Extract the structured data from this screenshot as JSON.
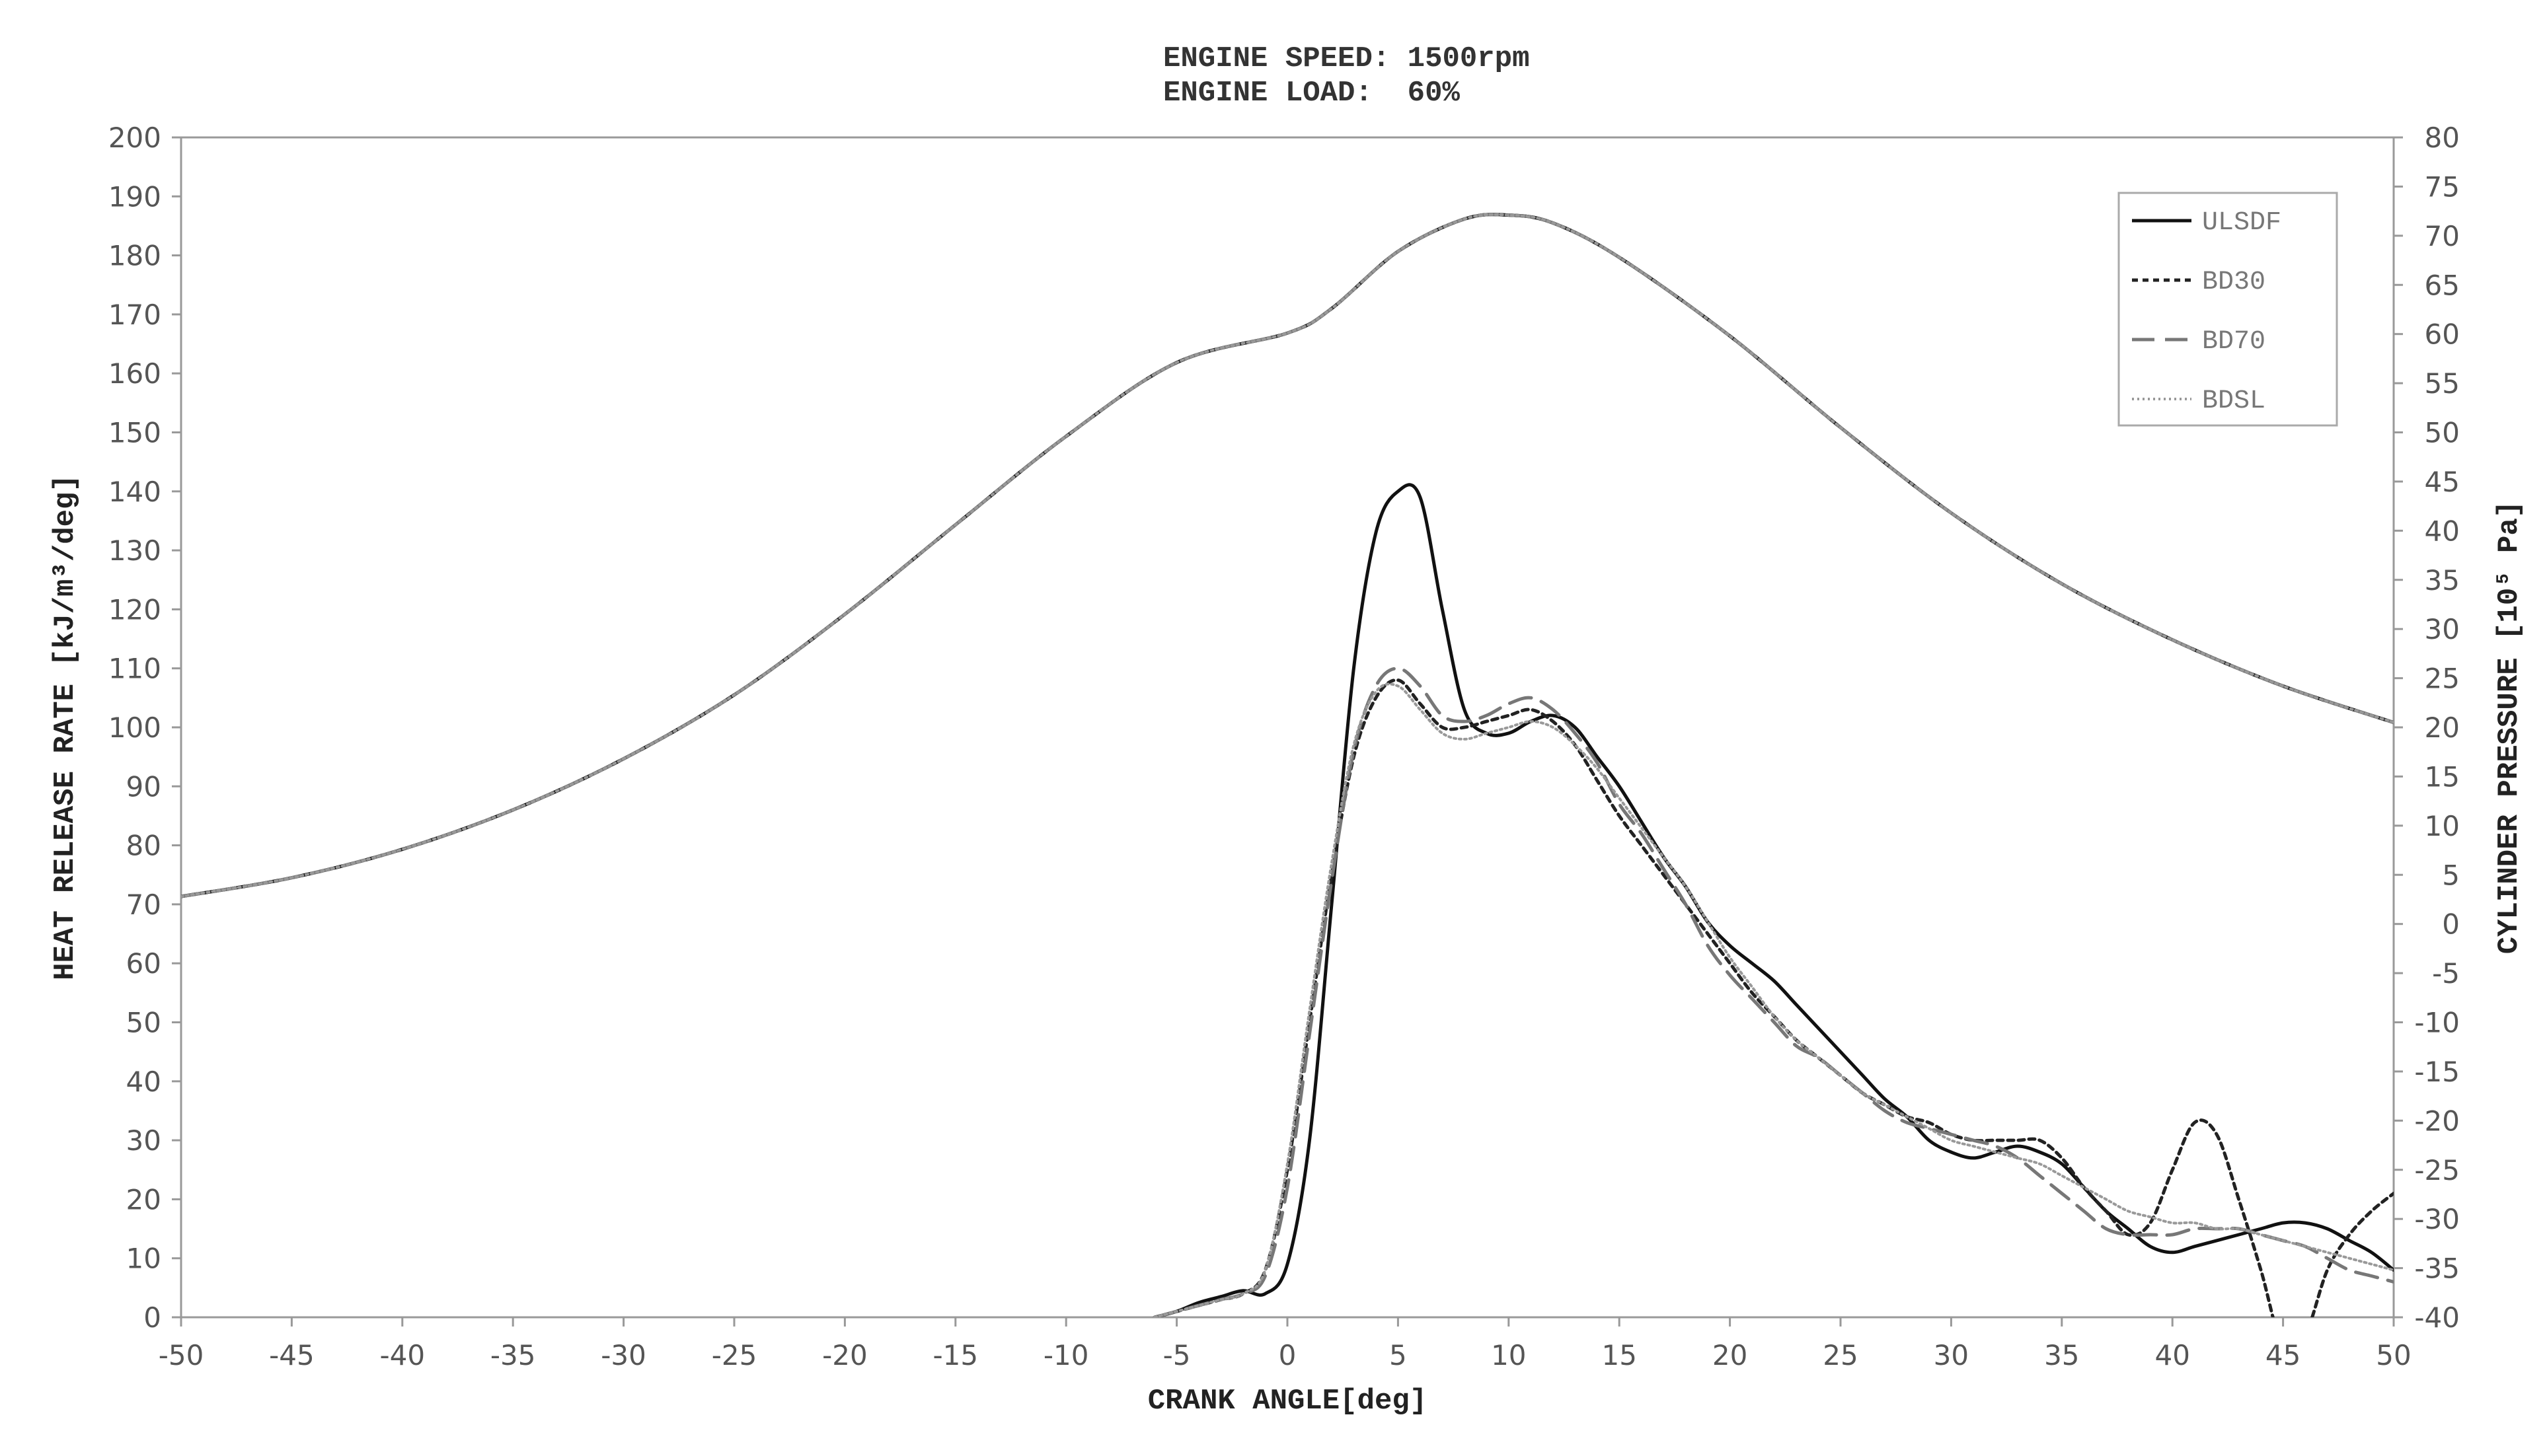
{
  "chart_data": {
    "type": "line",
    "title": [
      "ENGINE SPEED: 1500rpm",
      "ENGINE LOAD:  60%"
    ],
    "xlabel": "CRANK ANGLE[deg]",
    "ylabel": "HEAT RELEASE RATE [kJ/m³/deg]",
    "y2label": "CYLINDER PRESSURE [10⁵ Pa]",
    "xlim": [
      -50,
      50
    ],
    "ylim": [
      0,
      200
    ],
    "y2lim": [
      -40,
      80
    ],
    "xticks": [
      -50,
      -45,
      -40,
      -35,
      -30,
      -25,
      -20,
      -15,
      -10,
      -5,
      0,
      5,
      10,
      15,
      20,
      25,
      30,
      35,
      40,
      45,
      50
    ],
    "yticks": [
      0,
      10,
      20,
      30,
      40,
      50,
      60,
      70,
      80,
      90,
      100,
      110,
      120,
      130,
      140,
      150,
      160,
      170,
      180,
      190,
      200
    ],
    "y2ticks": [
      -40,
      -35,
      -30,
      -25,
      -20,
      -15,
      -10,
      -5,
      0,
      5,
      10,
      15,
      20,
      25,
      30,
      35,
      40,
      45,
      50,
      55,
      60,
      65,
      70,
      75,
      80
    ],
    "grid": false,
    "legend_position": "top-right",
    "series": [
      {
        "name": "ULSDF",
        "style": "solid",
        "color": "#111111",
        "axis": "right",
        "role": "pressure",
        "x": [
          -50,
          -45,
          -40,
          -35,
          -30,
          -25,
          -20,
          -15,
          -10,
          -5,
          0,
          2,
          5,
          8,
          10,
          12,
          15,
          20,
          25,
          30,
          35,
          40,
          45,
          50
        ],
        "y": [
          2.8,
          4.7,
          7.6,
          11.6,
          16.8,
          23.3,
          31.5,
          40.6,
          49.6,
          57.1,
          60.1,
          62.6,
          68.4,
          71.7,
          72.1,
          71.3,
          67.8,
          59.8,
          50.5,
          41.8,
          34.6,
          28.9,
          24.2,
          20.5
        ]
      },
      {
        "name": "BD30",
        "style": "dotted",
        "color": "#222222",
        "axis": "right",
        "role": "pressure",
        "x": [
          -50,
          -45,
          -40,
          -35,
          -30,
          -25,
          -20,
          -15,
          -10,
          -5,
          0,
          2,
          5,
          8,
          10,
          12,
          15,
          20,
          25,
          30,
          35,
          40,
          45,
          50
        ],
        "y": [
          2.8,
          4.7,
          7.6,
          11.6,
          16.8,
          23.3,
          31.5,
          40.6,
          49.6,
          57.1,
          60.1,
          62.6,
          68.4,
          71.7,
          72.1,
          71.3,
          67.8,
          59.8,
          50.5,
          41.8,
          34.6,
          28.9,
          24.2,
          20.5
        ]
      },
      {
        "name": "BD70",
        "style": "dashed",
        "color": "#777777",
        "axis": "right",
        "role": "pressure",
        "x": [
          -50,
          -45,
          -40,
          -35,
          -30,
          -25,
          -20,
          -15,
          -10,
          -5,
          0,
          2,
          5,
          8,
          10,
          12,
          15,
          20,
          25,
          30,
          35,
          40,
          45,
          50
        ],
        "y": [
          2.8,
          4.7,
          7.6,
          11.6,
          16.8,
          23.3,
          31.5,
          40.6,
          49.6,
          57.1,
          60.1,
          62.6,
          68.4,
          71.7,
          72.1,
          71.3,
          67.8,
          59.8,
          50.5,
          41.8,
          34.6,
          28.9,
          24.2,
          20.5
        ]
      },
      {
        "name": "BDSL",
        "style": "dense-dotted",
        "color": "#999999",
        "axis": "right",
        "role": "pressure",
        "x": [
          -50,
          -45,
          -40,
          -35,
          -30,
          -25,
          -20,
          -15,
          -10,
          -5,
          0,
          2,
          5,
          8,
          10,
          12,
          15,
          20,
          25,
          30,
          35,
          40,
          45,
          50
        ],
        "y": [
          2.8,
          4.7,
          7.6,
          11.6,
          16.8,
          23.3,
          31.5,
          40.6,
          49.6,
          57.1,
          60.1,
          62.6,
          68.4,
          71.7,
          72.1,
          71.3,
          67.8,
          59.8,
          50.5,
          41.8,
          34.6,
          28.9,
          24.2,
          20.5
        ]
      },
      {
        "name": "ULSDF",
        "style": "solid",
        "color": "#111111",
        "axis": "left",
        "role": "heat-release",
        "x": [
          -6,
          -5,
          -4,
          -3,
          -2,
          -1,
          0,
          1,
          2,
          3,
          4,
          5,
          6,
          7,
          8,
          9,
          10,
          11,
          12,
          13,
          14,
          15,
          16,
          17,
          18,
          19,
          20,
          21,
          22,
          23,
          24,
          25,
          26,
          27,
          28,
          29,
          30,
          31,
          32,
          33,
          34,
          35,
          36,
          37,
          38,
          39,
          40,
          41,
          42,
          43,
          44,
          45,
          46,
          47,
          48,
          49,
          50
        ],
        "y": [
          0,
          1,
          2.5,
          3.5,
          4.5,
          4,
          9,
          30,
          70,
          110,
          133,
          140,
          139,
          120,
          103,
          99,
          99,
          101,
          102,
          100,
          95,
          90,
          84,
          78,
          73,
          67,
          63,
          60,
          57,
          53,
          49,
          45,
          41,
          37,
          34,
          30,
          28,
          27,
          28,
          29,
          28,
          26,
          22,
          18,
          15,
          12,
          11,
          12,
          13,
          14,
          15,
          16,
          16,
          15,
          13,
          11,
          8
        ]
      },
      {
        "name": "BD30",
        "style": "dotted",
        "color": "#222222",
        "axis": "left",
        "role": "heat-release",
        "x": [
          -6,
          -5,
          -4,
          -3,
          -2,
          -1,
          0,
          1,
          2,
          3,
          4,
          5,
          6,
          7,
          8,
          9,
          10,
          11,
          12,
          13,
          14,
          15,
          16,
          17,
          18,
          19,
          20,
          21,
          22,
          23,
          24,
          25,
          26,
          27,
          28,
          29,
          30,
          31,
          32,
          33,
          34,
          35,
          36,
          37,
          38,
          39,
          40,
          41,
          42,
          43,
          44,
          45,
          46,
          47,
          48,
          49,
          50
        ],
        "y": [
          0,
          1,
          2,
          3,
          4,
          8,
          25,
          50,
          75,
          95,
          105,
          108,
          104,
          100,
          100,
          101,
          102,
          103,
          101,
          97,
          91,
          85,
          80,
          75,
          70,
          65,
          60,
          55,
          51,
          47,
          44,
          41,
          38,
          36,
          34,
          33,
          31,
          30,
          30,
          30,
          30,
          27,
          22,
          18,
          14,
          16,
          25,
          33,
          31,
          20,
          8,
          -5,
          -3,
          8,
          14,
          18,
          21
        ]
      },
      {
        "name": "BD70",
        "style": "dashed",
        "color": "#777777",
        "axis": "left",
        "role": "heat-release",
        "x": [
          -6,
          -5,
          -4,
          -3,
          -2,
          -1,
          0,
          1,
          2,
          3,
          4,
          5,
          6,
          7,
          8,
          9,
          10,
          11,
          12,
          13,
          14,
          15,
          16,
          17,
          18,
          19,
          20,
          21,
          22,
          23,
          24,
          25,
          26,
          27,
          28,
          29,
          30,
          31,
          32,
          33,
          34,
          35,
          36,
          37,
          38,
          39,
          40,
          41,
          42,
          43,
          44,
          45,
          46,
          47,
          48,
          49,
          50
        ],
        "y": [
          0,
          1,
          2,
          3,
          4,
          7,
          22,
          48,
          74,
          96,
          107,
          110,
          107,
          102,
          101,
          102,
          104,
          105,
          103,
          99,
          94,
          87,
          82,
          76,
          70,
          63,
          58,
          54,
          50,
          46,
          44,
          41,
          38,
          35,
          33,
          32,
          31,
          30,
          29,
          27,
          24,
          21,
          18,
          15,
          14,
          14,
          14,
          15,
          15,
          15,
          14,
          13,
          12,
          10,
          8,
          7,
          6
        ]
      },
      {
        "name": "BDSL",
        "style": "dense-dotted",
        "color": "#999999",
        "axis": "left",
        "role": "heat-release",
        "x": [
          -6,
          -5,
          -4,
          -3,
          -2,
          -1,
          0,
          1,
          2,
          3,
          4,
          5,
          6,
          7,
          8,
          9,
          10,
          11,
          12,
          13,
          14,
          15,
          16,
          17,
          18,
          19,
          20,
          21,
          22,
          23,
          24,
          25,
          26,
          27,
          28,
          29,
          30,
          31,
          32,
          33,
          34,
          35,
          36,
          37,
          38,
          39,
          40,
          41,
          42,
          43,
          44,
          45,
          46,
          47,
          48,
          49,
          50
        ],
        "y": [
          0,
          1,
          2,
          3,
          4,
          8,
          26,
          52,
          77,
          97,
          106,
          107,
          103,
          99,
          98,
          99,
          100,
          101,
          100,
          97,
          93,
          88,
          83,
          78,
          73,
          67,
          61,
          56,
          51,
          47,
          44,
          41,
          38,
          36,
          34,
          32,
          30,
          29,
          28,
          27,
          26,
          24,
          22,
          20,
          18,
          17,
          16,
          16,
          15,
          15,
          14,
          13,
          12,
          11,
          10,
          9,
          8
        ]
      }
    ]
  }
}
